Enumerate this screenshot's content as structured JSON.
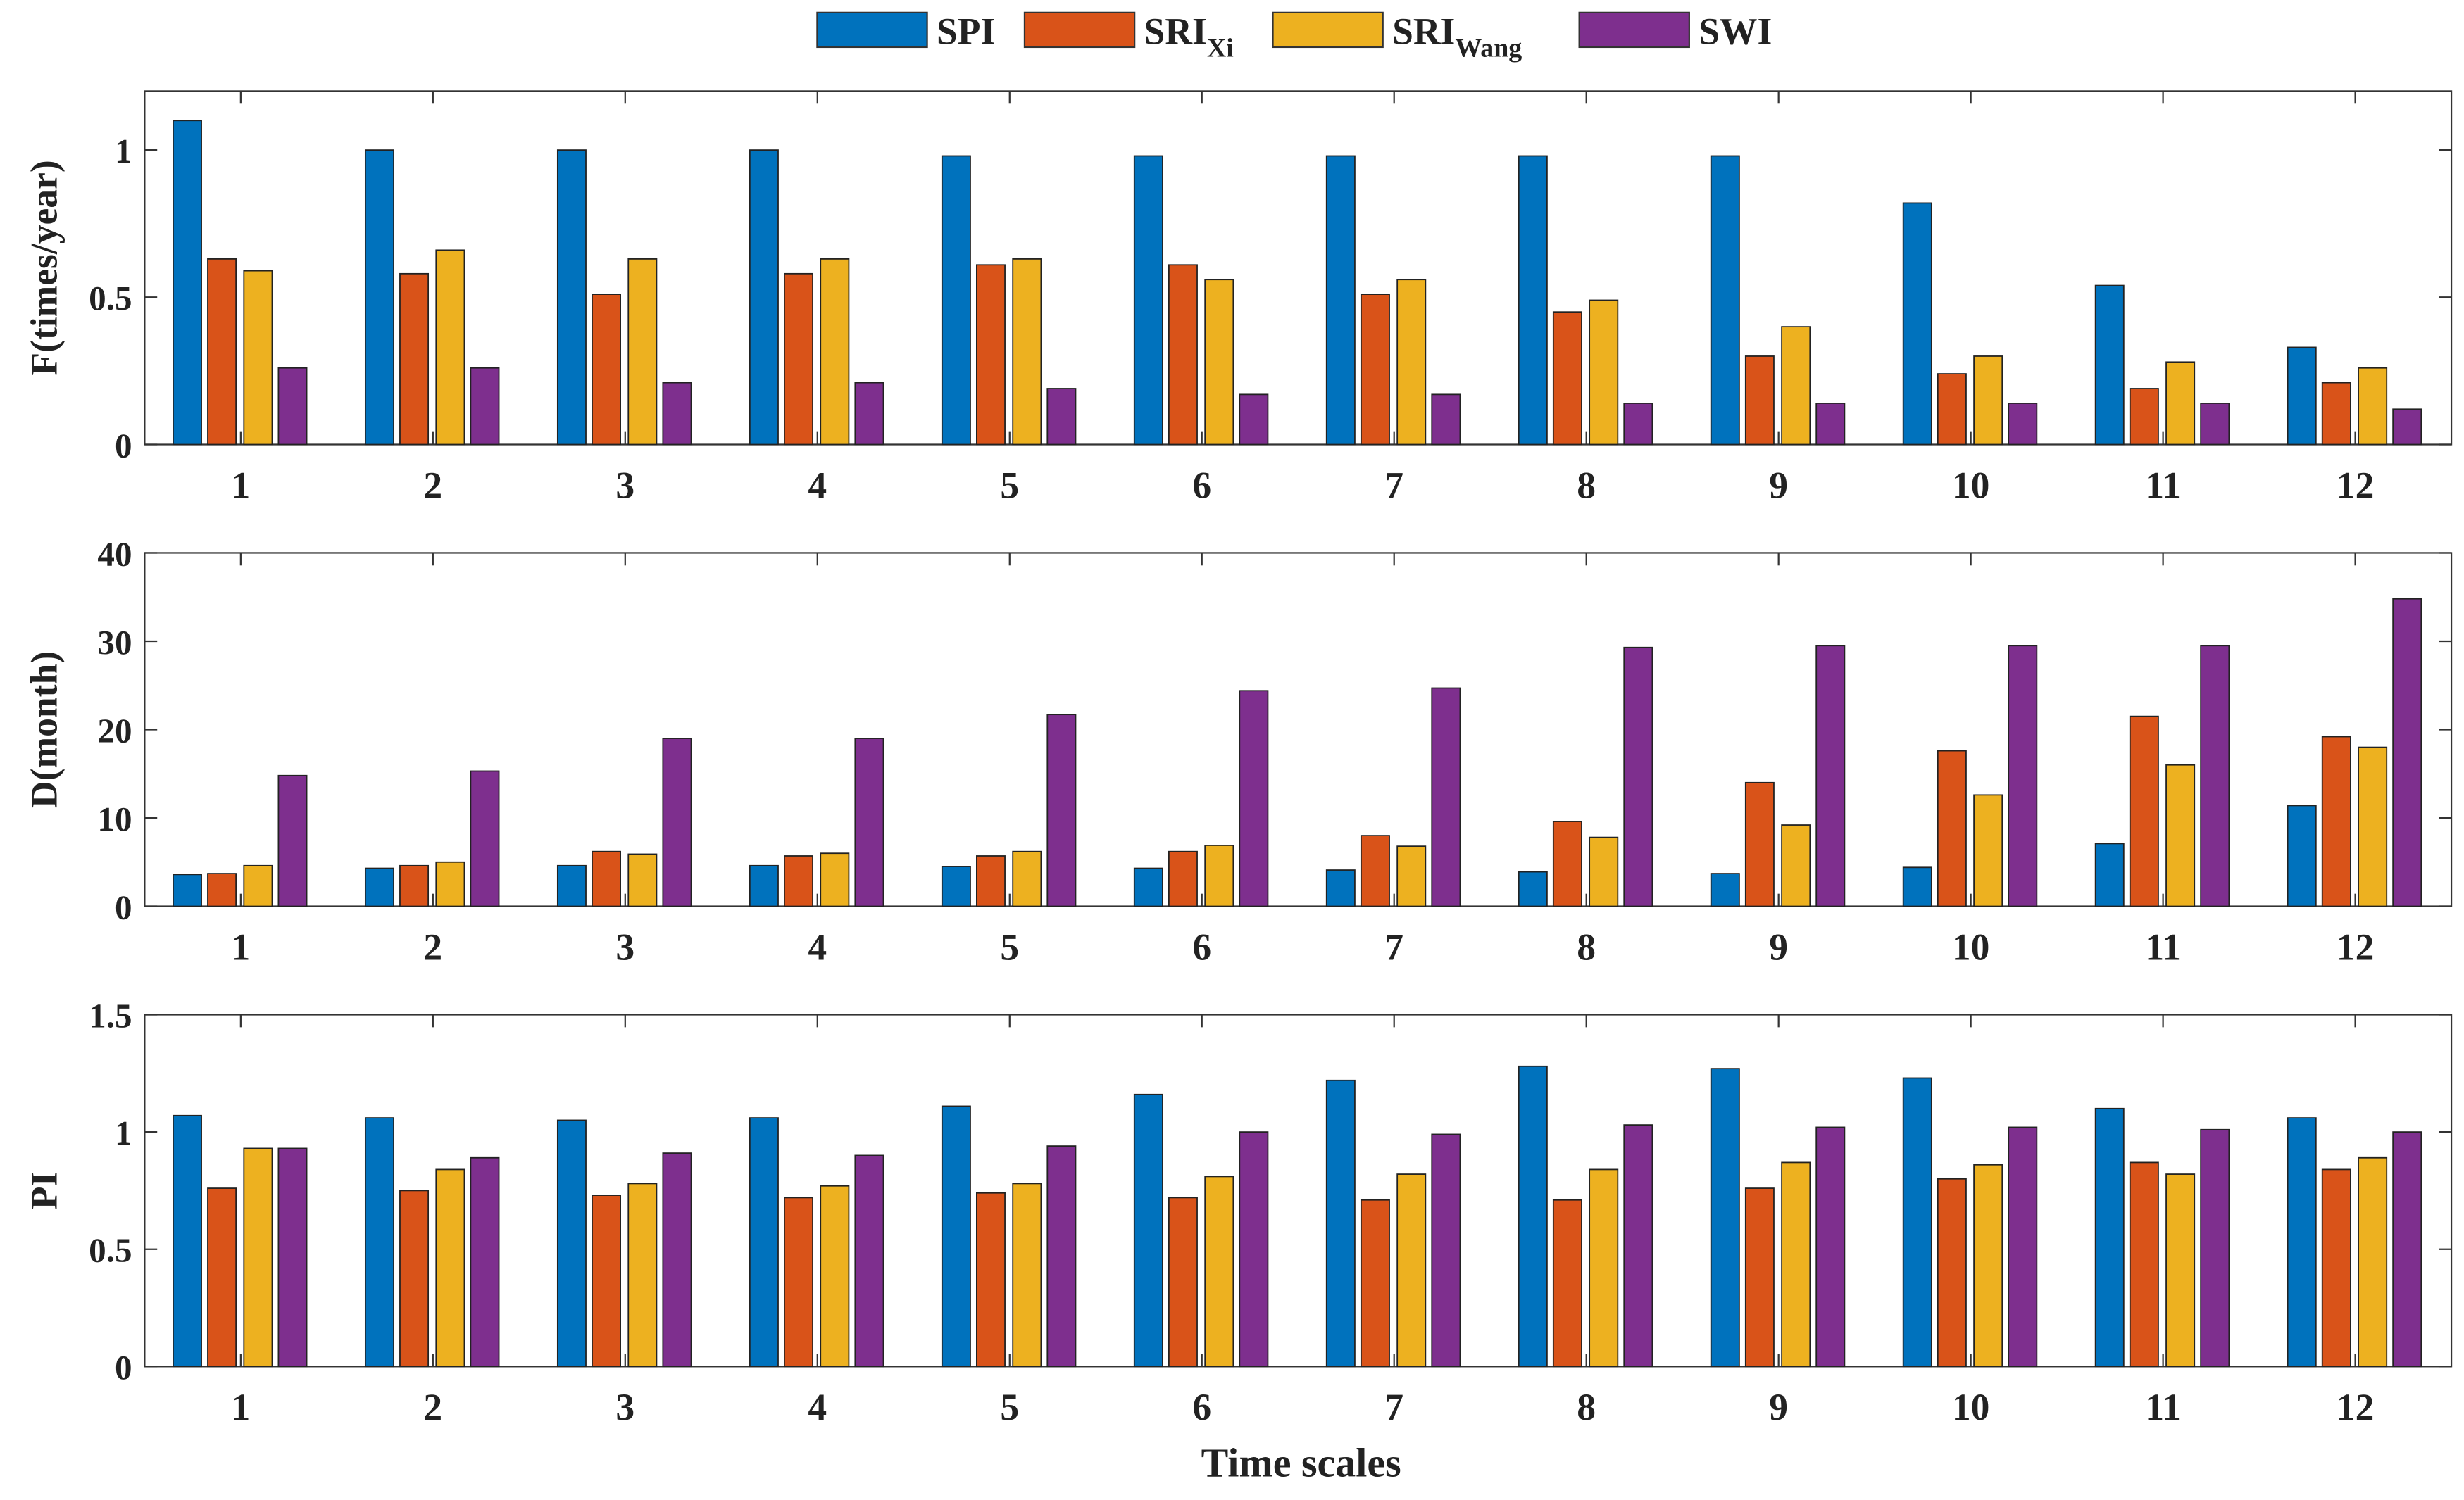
{
  "chart_data": {
    "type": "bar",
    "categories": [
      "1",
      "2",
      "3",
      "4",
      "5",
      "6",
      "7",
      "8",
      "9",
      "10",
      "11",
      "12"
    ],
    "xlabel": "Time scales",
    "legend": {
      "placement": "top-center",
      "entries": [
        {
          "label": "SPI",
          "sub": "",
          "color": "#0072BD"
        },
        {
          "label": "SRI",
          "sub": "Xi",
          "color": "#D95319"
        },
        {
          "label": "SRI",
          "sub": "Wang",
          "color": "#EDB120"
        },
        {
          "label": "SWI",
          "sub": "",
          "color": "#7E2F8E"
        }
      ]
    },
    "panels": [
      {
        "ylabel": "F(times/year)",
        "ylim": [
          0,
          1.2
        ],
        "yticks": [
          0,
          0.5,
          1
        ],
        "ytick_labels": [
          "0",
          "0.5",
          "1"
        ],
        "series": [
          {
            "name": "SPI",
            "values": [
              1.1,
              1.0,
              1.0,
              1.0,
              0.98,
              0.98,
              0.98,
              0.98,
              0.98,
              0.82,
              0.54,
              0.33
            ]
          },
          {
            "name": "SRI_Xi",
            "values": [
              0.63,
              0.58,
              0.51,
              0.58,
              0.61,
              0.61,
              0.51,
              0.45,
              0.3,
              0.24,
              0.19,
              0.21
            ]
          },
          {
            "name": "SRI_Wang",
            "values": [
              0.59,
              0.66,
              0.63,
              0.63,
              0.63,
              0.56,
              0.56,
              0.49,
              0.4,
              0.3,
              0.28,
              0.26
            ]
          },
          {
            "name": "SWI",
            "values": [
              0.26,
              0.26,
              0.21,
              0.21,
              0.19,
              0.17,
              0.17,
              0.14,
              0.14,
              0.14,
              0.14,
              0.12
            ]
          }
        ]
      },
      {
        "ylabel": "D(month)",
        "ylim": [
          0,
          40
        ],
        "yticks": [
          0,
          10,
          20,
          30,
          40
        ],
        "ytick_labels": [
          "0",
          "10",
          "20",
          "30",
          "40"
        ],
        "series": [
          {
            "name": "SPI",
            "values": [
              3.6,
              4.3,
              4.6,
              4.6,
              4.5,
              4.3,
              4.1,
              3.9,
              3.7,
              4.4,
              7.1,
              11.4
            ]
          },
          {
            "name": "SRI_Xi",
            "values": [
              3.7,
              4.6,
              6.2,
              5.7,
              5.7,
              6.2,
              8.0,
              9.6,
              14.0,
              17.6,
              21.5,
              19.2
            ]
          },
          {
            "name": "SRI_Wang",
            "values": [
              4.6,
              5.0,
              5.9,
              6.0,
              6.2,
              6.9,
              6.8,
              7.8,
              9.2,
              12.6,
              16.0,
              18.0
            ]
          },
          {
            "name": "SWI",
            "values": [
              14.8,
              15.3,
              19.0,
              19.0,
              21.7,
              24.4,
              24.7,
              29.3,
              29.5,
              29.5,
              29.5,
              34.8
            ]
          }
        ]
      },
      {
        "ylabel": "PI",
        "ylim": [
          0,
          1.5
        ],
        "yticks": [
          0,
          0.5,
          1,
          1.5
        ],
        "ytick_labels": [
          "0",
          "0.5",
          "1",
          "1.5"
        ],
        "series": [
          {
            "name": "SPI",
            "values": [
              1.07,
              1.06,
              1.05,
              1.06,
              1.11,
              1.16,
              1.22,
              1.28,
              1.27,
              1.23,
              1.1,
              1.06
            ]
          },
          {
            "name": "SRI_Xi",
            "values": [
              0.76,
              0.75,
              0.73,
              0.72,
              0.74,
              0.72,
              0.71,
              0.71,
              0.76,
              0.8,
              0.87,
              0.84
            ]
          },
          {
            "name": "SRI_Wang",
            "values": [
              0.93,
              0.84,
              0.78,
              0.77,
              0.78,
              0.81,
              0.82,
              0.84,
              0.87,
              0.86,
              0.82,
              0.89
            ]
          },
          {
            "name": "SWI",
            "values": [
              0.93,
              0.89,
              0.91,
              0.9,
              0.94,
              1.0,
              0.99,
              1.03,
              1.02,
              1.02,
              1.01,
              1.0
            ]
          }
        ]
      }
    ]
  }
}
